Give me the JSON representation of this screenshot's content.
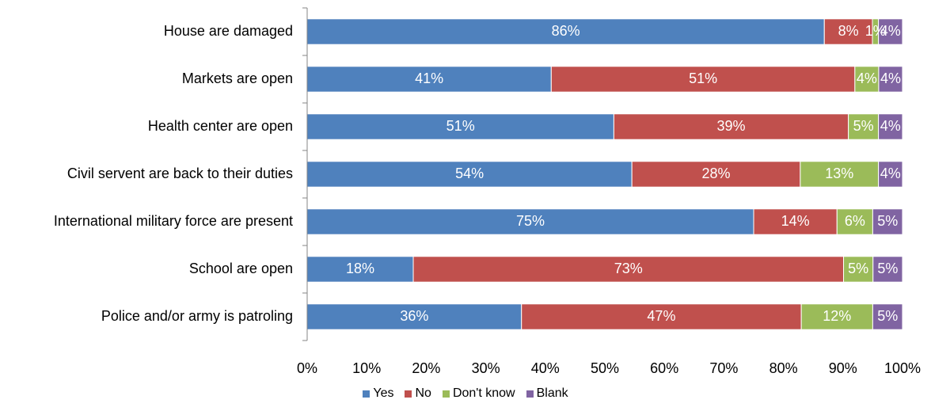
{
  "chart_data": {
    "type": "bar",
    "orientation": "horizontal",
    "stacked": "percent",
    "categories": [
      "House are damaged",
      "Markets are open",
      "Health center are open",
      "Civil servent are back to their duties",
      "International military force are present",
      "School are open",
      "Police and/or army is patroling"
    ],
    "series": [
      {
        "name": "Yes",
        "color": "#4F81BD",
        "values": [
          86,
          41,
          51,
          54,
          75,
          18,
          36
        ]
      },
      {
        "name": "No",
        "color": "#C0504D",
        "values": [
          8,
          51,
          39,
          28,
          14,
          73,
          47
        ]
      },
      {
        "name": "Don't know",
        "color": "#9BBB59",
        "values": [
          1,
          4,
          5,
          13,
          6,
          5,
          12
        ]
      },
      {
        "name": "Blank",
        "color": "#8064A2",
        "values": [
          4,
          4,
          4,
          4,
          5,
          5,
          5
        ]
      }
    ],
    "xticks": [
      "0%",
      "10%",
      "20%",
      "30%",
      "40%",
      "50%",
      "60%",
      "70%",
      "80%",
      "90%",
      "100%"
    ],
    "xlim": [
      0,
      100
    ],
    "grid": false,
    "legend": "bottom",
    "title": "",
    "xlabel": "",
    "ylabel": ""
  }
}
